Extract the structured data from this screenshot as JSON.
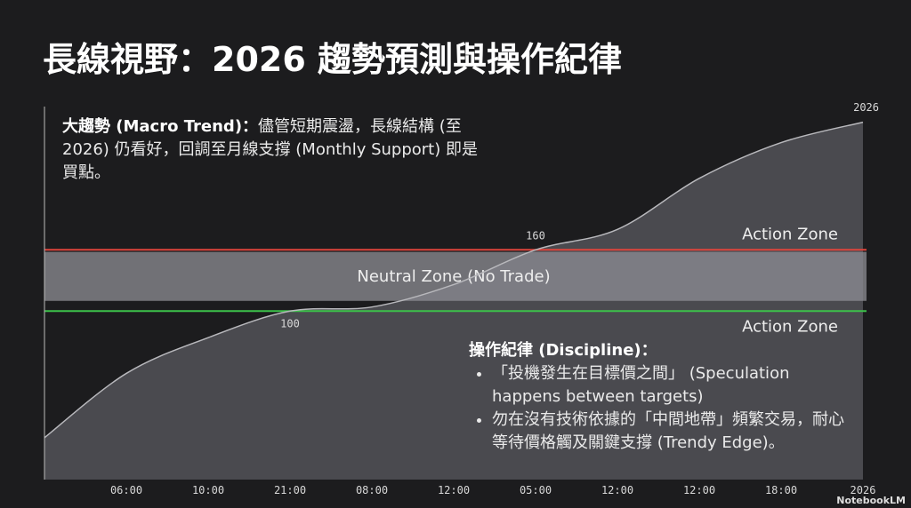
{
  "title": "長線視野：2026 趨勢預測與操作紀律",
  "chart_data": {
    "type": "area",
    "categories": [
      null,
      "06:00",
      "10:00",
      "21:00",
      "08:00",
      "12:00",
      "05:00",
      "12:00",
      "12:00",
      "18:00",
      "2026"
    ],
    "values": [
      -24,
      39,
      74,
      100,
      104,
      126,
      160,
      180,
      230,
      265,
      285
    ],
    "value_labels": [
      null,
      null,
      null,
      "100",
      null,
      null,
      "160",
      null,
      null,
      null,
      null
    ],
    "color": "#4a4a4f",
    "line_color": "#b8b8bc",
    "ylim": [
      -65,
      309
    ],
    "zones": [
      {
        "name": "Action Zone",
        "value": 160,
        "color": "#e0443c"
      },
      {
        "name": "Neutral Zone (No Trade)",
        "range": [
          110,
          158
        ],
        "color": "#8e8e94"
      },
      {
        "name": "Action Zone",
        "value": 100,
        "color": "#3cc24a"
      }
    ],
    "annotation": "2026"
  },
  "notes": {
    "macro_head": "大趨勢 (Macro Trend)：",
    "macro_body": "儘管短期震盪，長線結構 (至 2026) 仍看好，回調至月線支撐 (Monthly Support) 即是買點。",
    "discipline_head": "操作紀律 (Discipline)：",
    "bullets": [
      "「投機發生在目標價之間」 (Speculation happens between targets)",
      "勿在沒有技術依據的「中間地帶」頻繁交易，耐心等待價格觸及關鍵支撐 (Trendy Edge)。"
    ]
  },
  "watermark": "NotebookLM"
}
